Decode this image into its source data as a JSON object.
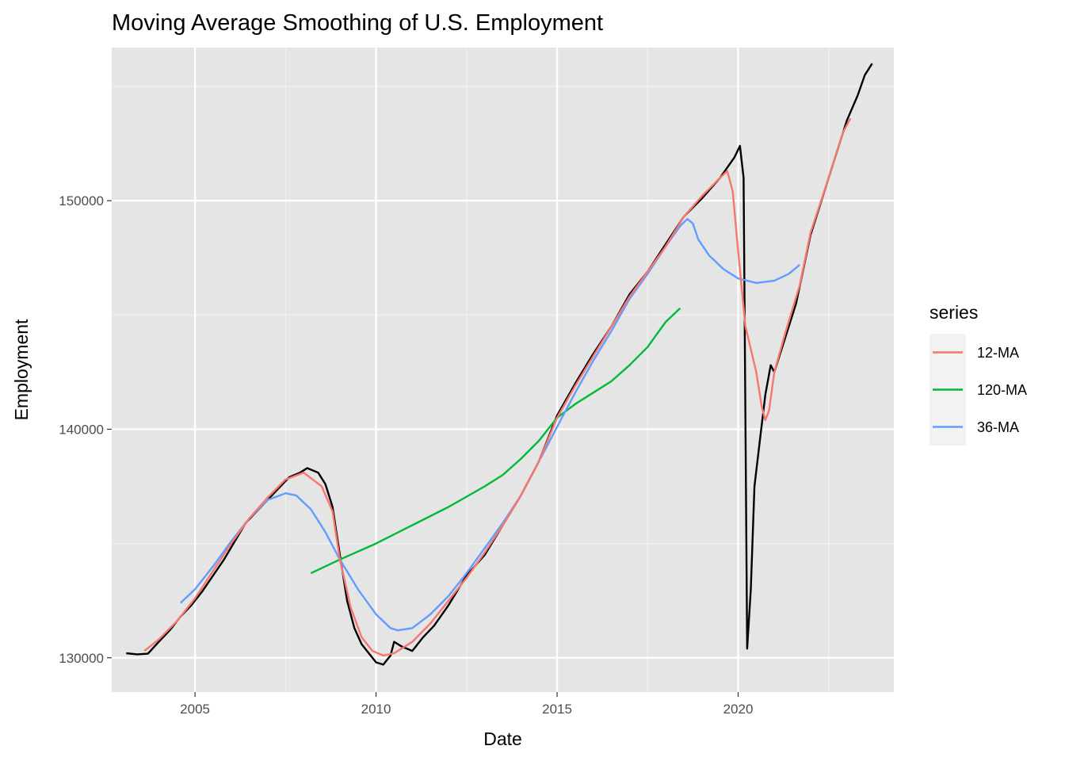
{
  "chart_data": {
    "type": "line",
    "title": "Moving Average Smoothing of U.S. Employment",
    "xlabel": "Date",
    "ylabel": "Employment",
    "xlim": [
      2002.7,
      2024.3
    ],
    "ylim": [
      128500,
      156700
    ],
    "x_ticks": [
      2005,
      2010,
      2015,
      2020
    ],
    "x_tick_labels": [
      "2005",
      "2010",
      "2015",
      "2020"
    ],
    "y_ticks": [
      130000,
      140000,
      150000
    ],
    "y_tick_labels": [
      "130000",
      "140000",
      "150000"
    ],
    "grid": true,
    "panel_background": "#E5E5E5",
    "legend": {
      "title": "series",
      "position": "right",
      "entries": [
        "12-MA",
        "120-MA",
        "36-MA"
      ]
    },
    "raw_series": {
      "color": "#000000",
      "points": [
        [
          2003.1,
          130200
        ],
        [
          2003.4,
          130150
        ],
        [
          2003.7,
          130180
        ],
        [
          2004.0,
          130700
        ],
        [
          2004.3,
          131200
        ],
        [
          2004.6,
          131800
        ],
        [
          2004.9,
          132300
        ],
        [
          2005.2,
          132900
        ],
        [
          2005.5,
          133600
        ],
        [
          2005.8,
          134300
        ],
        [
          2006.1,
          135100
        ],
        [
          2006.4,
          135900
        ],
        [
          2006.7,
          136400
        ],
        [
          2007.0,
          136900
        ],
        [
          2007.3,
          137400
        ],
        [
          2007.6,
          137900
        ],
        [
          2007.9,
          138100
        ],
        [
          2008.1,
          138300
        ],
        [
          2008.4,
          138100
        ],
        [
          2008.6,
          137600
        ],
        [
          2008.8,
          136600
        ],
        [
          2009.0,
          134500
        ],
        [
          2009.2,
          132500
        ],
        [
          2009.4,
          131300
        ],
        [
          2009.6,
          130600
        ],
        [
          2009.8,
          130200
        ],
        [
          2010.0,
          129800
        ],
        [
          2010.2,
          129700
        ],
        [
          2010.4,
          130100
        ],
        [
          2010.5,
          130700
        ],
        [
          2010.7,
          130500
        ],
        [
          2011.0,
          130300
        ],
        [
          2011.3,
          130900
        ],
        [
          2011.6,
          131400
        ],
        [
          2012.0,
          132300
        ],
        [
          2012.5,
          133600
        ],
        [
          2013.0,
          134500
        ],
        [
          2013.5,
          135800
        ],
        [
          2014.0,
          137100
        ],
        [
          2014.5,
          138600
        ],
        [
          2015.0,
          140600
        ],
        [
          2015.5,
          142000
        ],
        [
          2016.0,
          143300
        ],
        [
          2016.5,
          144500
        ],
        [
          2017.0,
          145900
        ],
        [
          2017.5,
          146900
        ],
        [
          2018.0,
          148100
        ],
        [
          2018.5,
          149300
        ],
        [
          2019.0,
          150100
        ],
        [
          2019.5,
          151000
        ],
        [
          2019.9,
          151900
        ],
        [
          2020.05,
          152400
        ],
        [
          2020.15,
          151000
        ],
        [
          2020.25,
          130400
        ],
        [
          2020.35,
          133000
        ],
        [
          2020.45,
          137500
        ],
        [
          2020.6,
          139500
        ],
        [
          2020.75,
          141500
        ],
        [
          2020.9,
          142800
        ],
        [
          2021.0,
          142500
        ],
        [
          2021.2,
          143500
        ],
        [
          2021.6,
          145500
        ],
        [
          2022.0,
          148500
        ],
        [
          2022.5,
          151000
        ],
        [
          2023.0,
          153500
        ],
        [
          2023.3,
          154600
        ],
        [
          2023.5,
          155500
        ],
        [
          2023.7,
          156000
        ]
      ]
    },
    "series": [
      {
        "name": "12-MA",
        "color": "#F8766D",
        "points": [
          [
            2003.6,
            130300
          ],
          [
            2004.0,
            130800
          ],
          [
            2004.5,
            131600
          ],
          [
            2005.0,
            132600
          ],
          [
            2005.5,
            133800
          ],
          [
            2006.0,
            135000
          ],
          [
            2006.5,
            136100
          ],
          [
            2007.0,
            137000
          ],
          [
            2007.5,
            137800
          ],
          [
            2008.0,
            138100
          ],
          [
            2008.5,
            137500
          ],
          [
            2008.8,
            136400
          ],
          [
            2009.0,
            134300
          ],
          [
            2009.3,
            132200
          ],
          [
            2009.6,
            130900
          ],
          [
            2009.9,
            130300
          ],
          [
            2010.2,
            130100
          ],
          [
            2010.5,
            130200
          ],
          [
            2011.0,
            130700
          ],
          [
            2011.5,
            131500
          ],
          [
            2012.0,
            132500
          ],
          [
            2012.5,
            133500
          ],
          [
            2013.0,
            134600
          ],
          [
            2013.5,
            135800
          ],
          [
            2014.0,
            137100
          ],
          [
            2014.5,
            138600
          ],
          [
            2015.0,
            140500
          ],
          [
            2015.5,
            141900
          ],
          [
            2016.0,
            143200
          ],
          [
            2016.5,
            144500
          ],
          [
            2017.0,
            145800
          ],
          [
            2017.5,
            146900
          ],
          [
            2018.0,
            148000
          ],
          [
            2018.5,
            149300
          ],
          [
            2019.0,
            150200
          ],
          [
            2019.5,
            151000
          ],
          [
            2019.7,
            151300
          ],
          [
            2019.85,
            150400
          ],
          [
            2020.0,
            147800
          ],
          [
            2020.2,
            144500
          ],
          [
            2020.5,
            142500
          ],
          [
            2020.65,
            141000
          ],
          [
            2020.75,
            140400
          ],
          [
            2020.85,
            140800
          ],
          [
            2021.0,
            142500
          ],
          [
            2021.3,
            144200
          ],
          [
            2021.7,
            146300
          ],
          [
            2022.0,
            148600
          ],
          [
            2022.5,
            151000
          ],
          [
            2022.9,
            153000
          ],
          [
            2023.1,
            153600
          ]
        ]
      },
      {
        "name": "120-MA",
        "color": "#00BA38",
        "points": [
          [
            2008.2,
            133700
          ],
          [
            2009.0,
            134300
          ],
          [
            2010.0,
            135000
          ],
          [
            2011.0,
            135800
          ],
          [
            2012.0,
            136600
          ],
          [
            2013.0,
            137500
          ],
          [
            2013.5,
            138000
          ],
          [
            2014.0,
            138700
          ],
          [
            2014.5,
            139500
          ],
          [
            2015.0,
            140500
          ],
          [
            2015.5,
            141100
          ],
          [
            2016.0,
            141600
          ],
          [
            2016.5,
            142100
          ],
          [
            2017.0,
            142800
          ],
          [
            2017.5,
            143600
          ],
          [
            2018.0,
            144700
          ],
          [
            2018.4,
            145300
          ]
        ]
      },
      {
        "name": "36-MA",
        "color": "#619CFF",
        "points": [
          [
            2004.6,
            132400
          ],
          [
            2005.0,
            133000
          ],
          [
            2005.5,
            134000
          ],
          [
            2006.0,
            135100
          ],
          [
            2006.5,
            136100
          ],
          [
            2007.0,
            136900
          ],
          [
            2007.5,
            137200
          ],
          [
            2007.8,
            137100
          ],
          [
            2008.2,
            136500
          ],
          [
            2008.6,
            135500
          ],
          [
            2009.0,
            134300
          ],
          [
            2009.5,
            133000
          ],
          [
            2010.0,
            131900
          ],
          [
            2010.4,
            131300
          ],
          [
            2010.6,
            131200
          ],
          [
            2011.0,
            131300
          ],
          [
            2011.5,
            131900
          ],
          [
            2012.0,
            132700
          ],
          [
            2012.5,
            133700
          ],
          [
            2013.0,
            134800
          ],
          [
            2013.5,
            135900
          ],
          [
            2014.0,
            137100
          ],
          [
            2014.5,
            138600
          ],
          [
            2015.0,
            140100
          ],
          [
            2015.5,
            141600
          ],
          [
            2016.0,
            143000
          ],
          [
            2016.5,
            144300
          ],
          [
            2017.0,
            145700
          ],
          [
            2017.5,
            146800
          ],
          [
            2018.0,
            148000
          ],
          [
            2018.4,
            148900
          ],
          [
            2018.6,
            149200
          ],
          [
            2018.75,
            149000
          ],
          [
            2018.9,
            148300
          ],
          [
            2019.2,
            147600
          ],
          [
            2019.6,
            147000
          ],
          [
            2020.0,
            146600
          ],
          [
            2020.5,
            146400
          ],
          [
            2021.0,
            146500
          ],
          [
            2021.4,
            146800
          ],
          [
            2021.7,
            147200
          ]
        ]
      }
    ]
  }
}
